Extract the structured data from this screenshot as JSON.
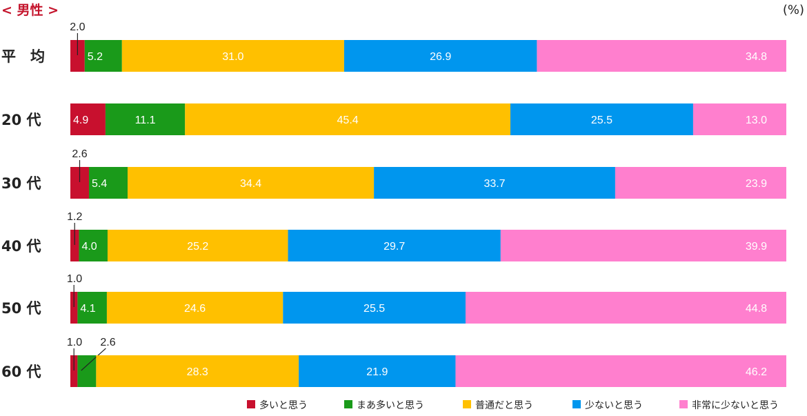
{
  "header": {
    "title": "< 男性 >",
    "unit": "(%)"
  },
  "chart_data": {
    "type": "bar",
    "orientation": "horizontal",
    "stacked": true,
    "percent": true,
    "categories": [
      "平　均",
      "20 代",
      "30 代",
      "40 代",
      "50 代",
      "60 代"
    ],
    "series": [
      {
        "name": "多いと思う",
        "color": "#c8102e",
        "values": [
          2.0,
          4.9,
          2.6,
          1.2,
          1.0,
          1.0
        ]
      },
      {
        "name": "まあ多いと思う",
        "color": "#1a9a1a",
        "values": [
          5.2,
          11.1,
          5.4,
          4.0,
          4.1,
          2.6
        ]
      },
      {
        "name": "普通だと思う",
        "color": "#ffc000",
        "values": [
          31.0,
          45.4,
          34.4,
          25.2,
          24.6,
          28.3
        ]
      },
      {
        "name": "少ないと思う",
        "color": "#0096ee",
        "values": [
          26.9,
          25.5,
          33.7,
          29.7,
          25.5,
          21.9
        ]
      },
      {
        "name": "非常に少ないと思う",
        "color": "#ff7fce",
        "values": [
          34.8,
          13.0,
          23.9,
          39.9,
          44.8,
          46.2
        ]
      }
    ],
    "value_labels": [
      [
        "2.0",
        "5.2",
        "31.0",
        "26.9",
        "34.8"
      ],
      [
        "4.9",
        "11.1",
        "45.4",
        "25.5",
        "13.0"
      ],
      [
        "2.6",
        "5.4",
        "34.4",
        "33.7",
        "23.9"
      ],
      [
        "1.2",
        "4.0",
        "25.2",
        "29.7",
        "39.9"
      ],
      [
        "1.0",
        "4.1",
        "24.6",
        "25.5",
        "44.8"
      ],
      [
        "1.0",
        "2.6",
        "28.3",
        "21.9",
        "46.2"
      ]
    ],
    "legend_position": "bottom-right",
    "grid": false,
    "xlim": [
      0,
      100
    ]
  }
}
